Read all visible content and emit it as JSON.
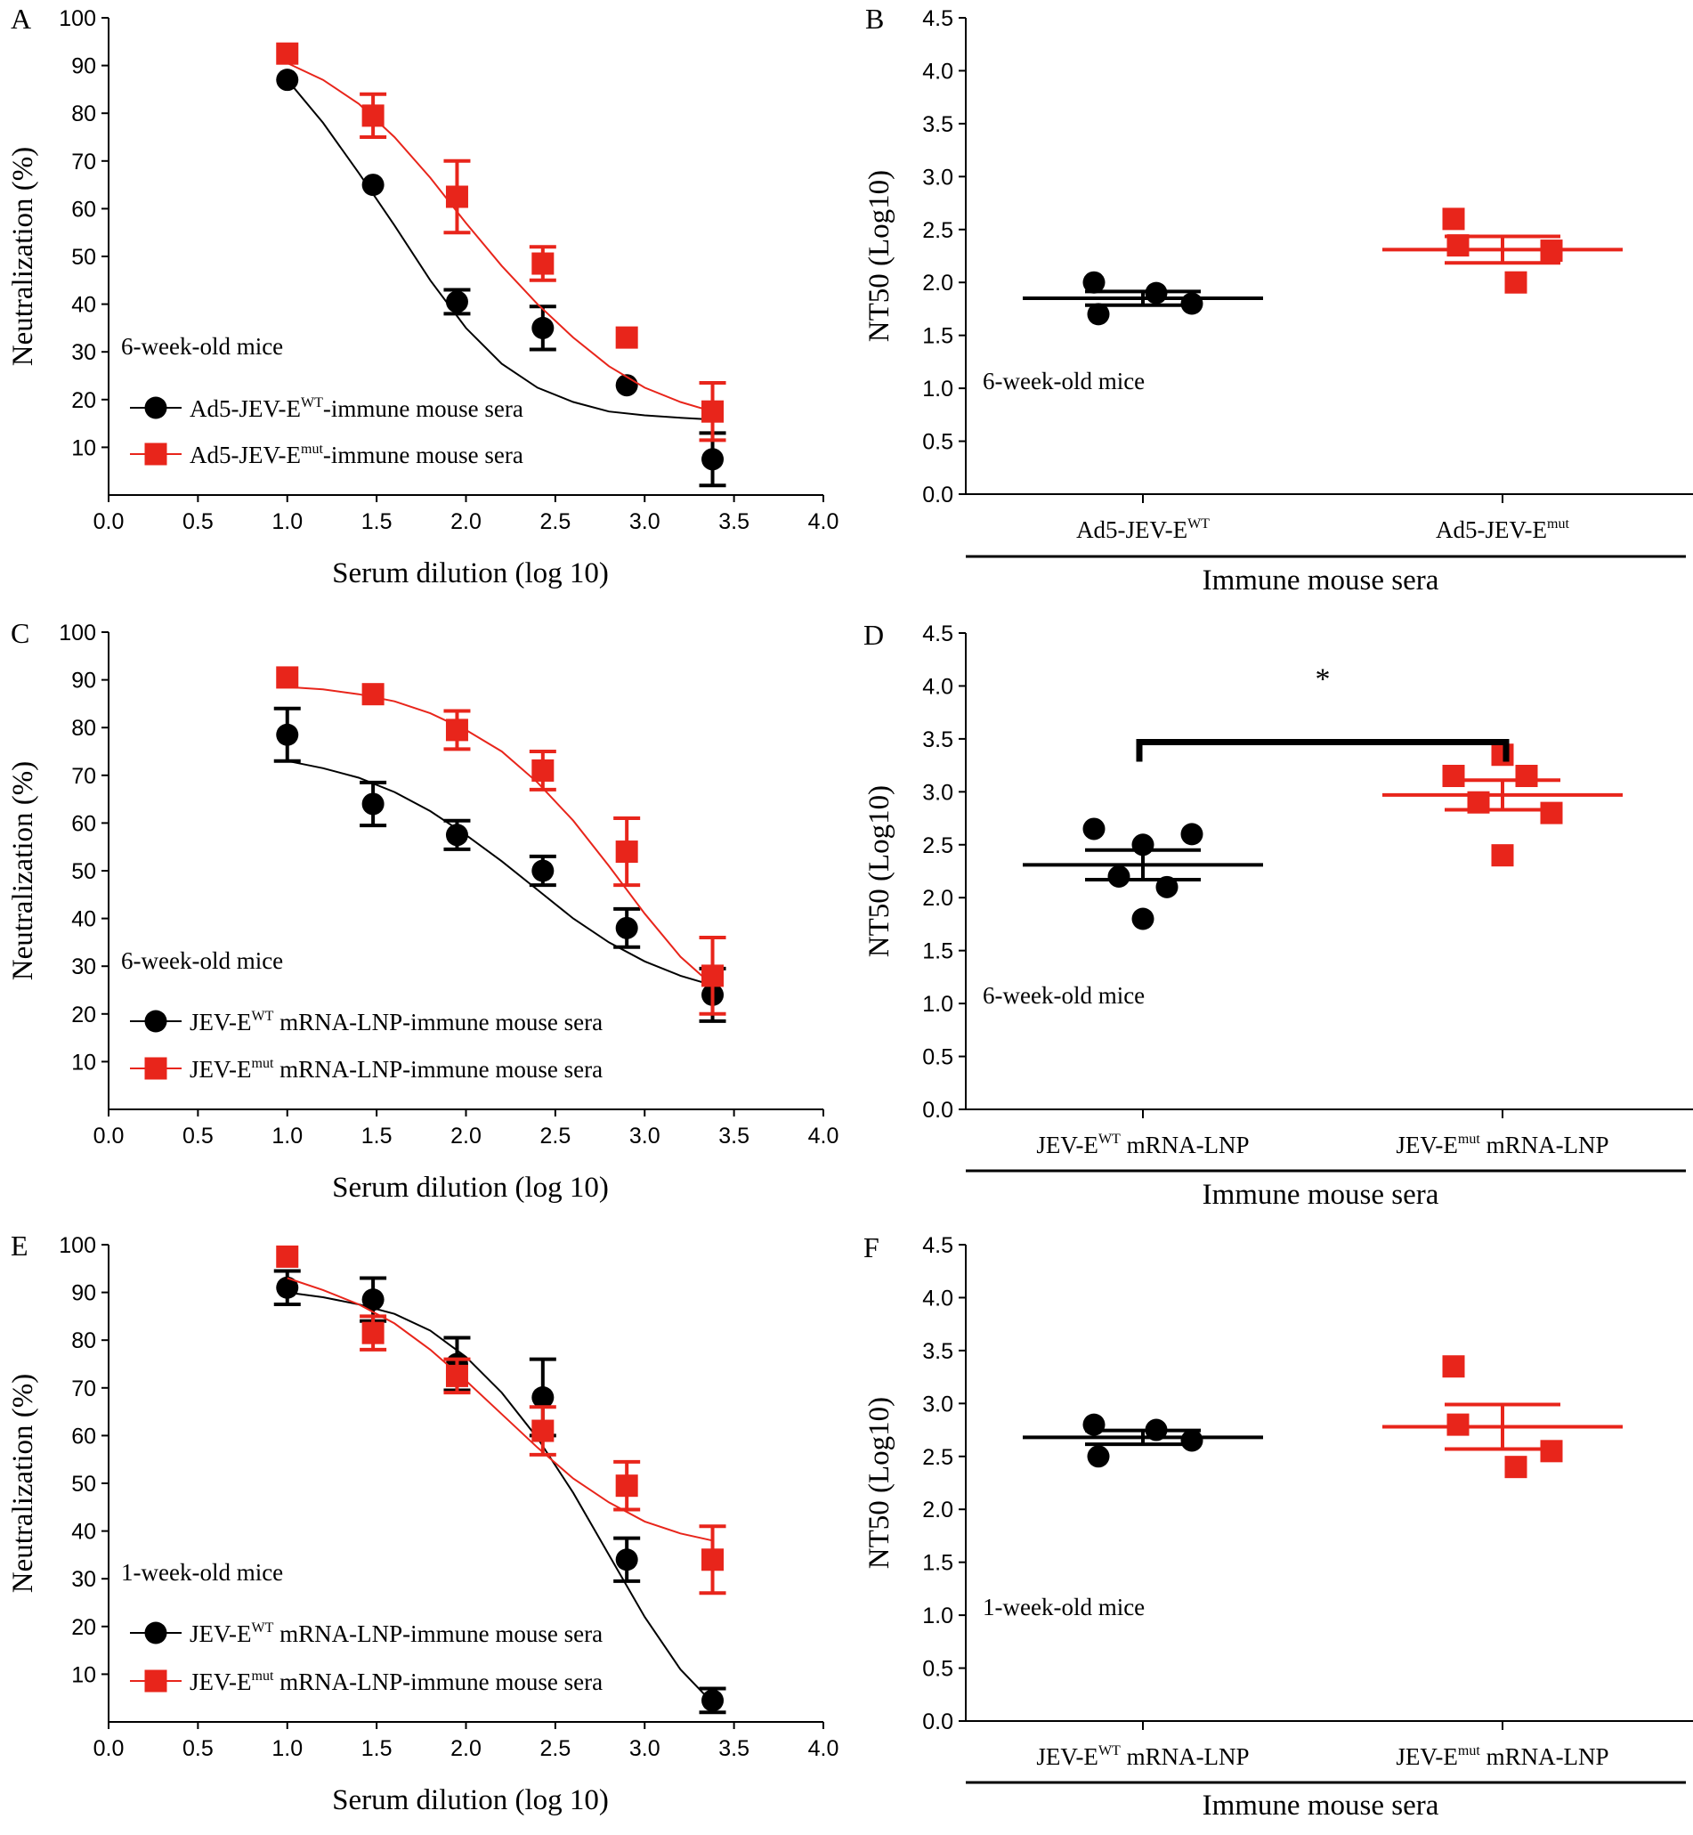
{
  "chart_data": [
    {
      "panel": "A",
      "type": "line",
      "xlabel": "Serum dilution (log 10)",
      "ylabel": "Neutralization (%)",
      "xlim": [
        0.0,
        4.0
      ],
      "ylim": [
        0,
        100
      ],
      "xticks": [
        "0.0",
        "0.5",
        "1.0",
        "1.5",
        "2.0",
        "2.5",
        "3.0",
        "3.5",
        "4.0"
      ],
      "yticks": [
        "10",
        "20",
        "30",
        "40",
        "50",
        "60",
        "70",
        "80",
        "90",
        "100"
      ],
      "annotation": "6-week-old mice",
      "series": [
        {
          "name_main": "Ad5-JEV-E",
          "name_sup": "WT",
          "name_rest": "-immune mouse sera",
          "color": "#000000",
          "marker": "circle",
          "x": [
            1.0,
            1.48,
            1.95,
            2.43,
            2.9,
            3.38
          ],
          "y": [
            87,
            65,
            40.5,
            35,
            23,
            7.5
          ],
          "err": [
            0,
            0,
            2.5,
            4.5,
            0,
            5.5
          ],
          "fit_x": [
            1.0,
            1.2,
            1.4,
            1.6,
            1.8,
            2.0,
            2.2,
            2.4,
            2.6,
            2.8,
            3.0,
            3.2,
            3.38
          ],
          "fit_y": [
            87,
            78,
            67.5,
            56.5,
            45,
            35,
            27.5,
            22.5,
            19.5,
            17.5,
            16.7,
            16.2,
            15.8
          ]
        },
        {
          "name_main": "Ad5-JEV-E",
          "name_sup": "mut",
          "name_rest": "-immune mouse sera",
          "color": "#e8251b",
          "marker": "square",
          "x": [
            1.0,
            1.48,
            1.95,
            2.43,
            2.9,
            3.38
          ],
          "y": [
            92.5,
            79.5,
            62.5,
            48.5,
            33,
            17.5
          ],
          "err": [
            0,
            4.5,
            7.5,
            3.5,
            0,
            6
          ],
          "fit_x": [
            1.0,
            1.2,
            1.4,
            1.6,
            1.8,
            2.0,
            2.2,
            2.4,
            2.6,
            2.8,
            3.0,
            3.2,
            3.38
          ],
          "fit_y": [
            90.5,
            87,
            82,
            75,
            66.5,
            57,
            48,
            40,
            33,
            27,
            22.5,
            19.5,
            17.5
          ]
        }
      ]
    },
    {
      "panel": "B",
      "type": "scatter",
      "xlabel": "Immune mouse sera",
      "ylabel": "NT50 (Log10)",
      "ylim": [
        0.0,
        4.5
      ],
      "yticks": [
        "0.0",
        "0.5",
        "1.0",
        "1.5",
        "2.0",
        "2.5",
        "3.0",
        "3.5",
        "4.0",
        "4.5"
      ],
      "annotation": "6-week-old mice",
      "groups": [
        {
          "label_main": "Ad5-JEV-E",
          "label_sup": "WT",
          "label_rest": "",
          "color": "#000000",
          "marker": "circle",
          "values": [
            2.0,
            1.7,
            1.9,
            1.8
          ],
          "mean": 1.85,
          "sem": 0.065
        },
        {
          "label_main": "Ad5-JEV-E",
          "label_sup": "mut",
          "label_rest": "",
          "color": "#e8251b",
          "marker": "square",
          "values": [
            2.6,
            2.35,
            2.0,
            2.3
          ],
          "mean": 2.31,
          "sem": 0.125
        }
      ]
    },
    {
      "panel": "C",
      "type": "line",
      "xlabel": "Serum dilution (log 10)",
      "ylabel": "Neutralization (%)",
      "xlim": [
        0.0,
        4.0
      ],
      "ylim": [
        0,
        100
      ],
      "xticks": [
        "0.0",
        "0.5",
        "1.0",
        "1.5",
        "2.0",
        "2.5",
        "3.0",
        "3.5",
        "4.0"
      ],
      "yticks": [
        "10",
        "20",
        "30",
        "40",
        "50",
        "60",
        "70",
        "80",
        "90",
        "100"
      ],
      "annotation": "6-week-old mice",
      "series": [
        {
          "name_main": "JEV-E",
          "name_sup": "WT",
          "name_rest": " mRNA-LNP-immune mouse sera",
          "color": "#000000",
          "marker": "circle",
          "x": [
            1.0,
            1.48,
            1.95,
            2.43,
            2.9,
            3.38
          ],
          "y": [
            78.5,
            64,
            57.5,
            50,
            38,
            24
          ],
          "err": [
            5.5,
            4.5,
            3,
            3,
            4,
            5.5
          ],
          "fit_x": [
            1.0,
            1.2,
            1.4,
            1.6,
            1.8,
            2.0,
            2.2,
            2.4,
            2.6,
            2.8,
            3.0,
            3.2,
            3.38
          ],
          "fit_y": [
            73,
            71.5,
            69.5,
            66.5,
            62.5,
            57.5,
            52,
            46,
            40,
            35,
            31,
            28,
            26
          ]
        },
        {
          "name_main": "JEV-E",
          "name_sup": "mut",
          "name_rest": " mRNA-LNP-immune mouse sera",
          "color": "#e8251b",
          "marker": "square",
          "x": [
            1.0,
            1.48,
            1.95,
            2.43,
            2.9,
            3.38
          ],
          "y": [
            90.5,
            87,
            79.5,
            71,
            54,
            28
          ],
          "err": [
            0,
            0,
            4,
            4,
            7,
            8
          ],
          "fit_x": [
            1.0,
            1.2,
            1.4,
            1.6,
            1.8,
            2.0,
            2.2,
            2.4,
            2.6,
            2.8,
            3.0,
            3.2,
            3.38
          ],
          "fit_y": [
            88.5,
            88,
            87,
            85.5,
            83,
            79.5,
            75,
            68.5,
            60.5,
            51,
            41,
            32,
            26
          ]
        }
      ]
    },
    {
      "panel": "D",
      "type": "scatter",
      "xlabel": "Immune mouse sera",
      "ylabel": "NT50 (Log10)",
      "ylim": [
        0.0,
        4.5
      ],
      "yticks": [
        "0.0",
        "0.5",
        "1.0",
        "1.5",
        "2.0",
        "2.5",
        "3.0",
        "3.5",
        "4.0",
        "4.5"
      ],
      "annotation": "6-week-old mice",
      "significance": "*",
      "groups": [
        {
          "label_main": "JEV-E",
          "label_sup": "WT",
          "label_rest": " mRNA-LNP",
          "color": "#000000",
          "marker": "circle",
          "values": [
            2.65,
            2.2,
            1.8,
            2.5,
            2.1,
            2.6
          ],
          "mean": 2.31,
          "sem": 0.14
        },
        {
          "label_main": "JEV-E",
          "label_sup": "mut",
          "label_rest": " mRNA-LNP",
          "color": "#e8251b",
          "marker": "square",
          "values": [
            3.15,
            2.9,
            2.4,
            3.35,
            3.15,
            2.8
          ],
          "mean": 2.97,
          "sem": 0.14
        }
      ]
    },
    {
      "panel": "E",
      "type": "line",
      "xlabel": "Serum dilution (log 10)",
      "ylabel": "Neutralization (%)",
      "xlim": [
        0.0,
        4.0
      ],
      "ylim": [
        0,
        100
      ],
      "xticks": [
        "0.0",
        "0.5",
        "1.0",
        "1.5",
        "2.0",
        "2.5",
        "3.0",
        "3.5",
        "4.0"
      ],
      "yticks": [
        "10",
        "20",
        "30",
        "40",
        "50",
        "60",
        "70",
        "80",
        "90",
        "100"
      ],
      "annotation": "1-week-old mice",
      "series": [
        {
          "name_main": "JEV-E",
          "name_sup": "WT",
          "name_rest": " mRNA-LNP-immune mouse sera",
          "color": "#000000",
          "marker": "circle",
          "x": [
            1.0,
            1.48,
            1.95,
            2.43,
            2.9,
            3.38
          ],
          "y": [
            91,
            88.5,
            75,
            68,
            34,
            4.5
          ],
          "err": [
            3.5,
            4.5,
            5.5,
            8,
            4.5,
            2.5
          ],
          "fit_x": [
            1.0,
            1.2,
            1.4,
            1.6,
            1.8,
            2.0,
            2.2,
            2.4,
            2.6,
            2.8,
            3.0,
            3.2,
            3.38
          ],
          "fit_y": [
            90,
            89,
            87.5,
            85.5,
            82,
            76.5,
            69,
            59.5,
            48,
            35,
            22,
            11,
            4
          ]
        },
        {
          "name_main": "JEV-E",
          "name_sup": "mut",
          "name_rest": " mRNA-LNP-immune mouse sera",
          "color": "#e8251b",
          "marker": "square",
          "x": [
            1.0,
            1.48,
            1.95,
            2.43,
            2.9,
            3.38
          ],
          "y": [
            97.5,
            81.5,
            72.5,
            61,
            49.5,
            34
          ],
          "err": [
            0,
            3.5,
            3.5,
            5,
            5,
            7
          ],
          "fit_x": [
            1.0,
            1.2,
            1.4,
            1.6,
            1.8,
            2.0,
            2.2,
            2.4,
            2.6,
            2.8,
            3.0,
            3.2,
            3.38
          ],
          "fit_y": [
            93,
            90.5,
            87.5,
            83.5,
            78,
            71.5,
            64.5,
            57.5,
            51,
            46,
            42,
            39.5,
            38
          ]
        }
      ]
    },
    {
      "panel": "F",
      "type": "scatter",
      "xlabel": "Immune mouse sera",
      "ylabel": "NT50 (Log10)",
      "ylim": [
        0.0,
        4.5
      ],
      "yticks": [
        "0.0",
        "0.5",
        "1.0",
        "1.5",
        "2.0",
        "2.5",
        "3.0",
        "3.5",
        "4.0",
        "4.5"
      ],
      "annotation": "1-week-old mice",
      "groups": [
        {
          "label_main": "JEV-E",
          "label_sup": "WT",
          "label_rest": " mRNA-LNP",
          "color": "#000000",
          "marker": "circle",
          "values": [
            2.8,
            2.5,
            2.75,
            2.65
          ],
          "mean": 2.68,
          "sem": 0.065
        },
        {
          "label_main": "JEV-E",
          "label_sup": "mut",
          "label_rest": " mRNA-LNP",
          "color": "#e8251b",
          "marker": "square",
          "values": [
            3.35,
            2.8,
            2.4,
            2.55
          ],
          "mean": 2.78,
          "sem": 0.21
        }
      ]
    }
  ]
}
